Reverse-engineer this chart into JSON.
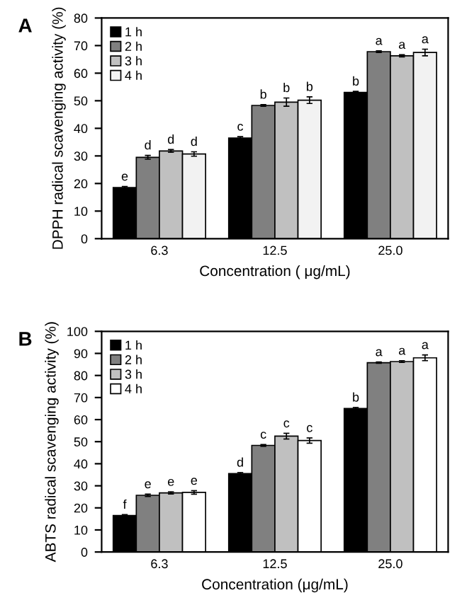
{
  "chart_data": [
    {
      "type": "bar",
      "title": "A",
      "xlabel": "Concentration ( μg/mL)",
      "ylabel": "DPPH radical scavenging activity (%)",
      "categories": [
        "6.3",
        "12.5",
        "25.0"
      ],
      "ylim": [
        0,
        80
      ],
      "yticks": [
        0,
        10,
        20,
        30,
        40,
        50,
        60,
        70,
        80
      ],
      "grid": false,
      "legend": "top left",
      "series": [
        {
          "name": "1 h",
          "color": "#000000",
          "values": [
            18.5,
            36.5,
            53
          ],
          "errors": [
            0.4,
            0.5,
            0.4
          ],
          "value_labels": [
            "e",
            "c",
            "b"
          ]
        },
        {
          "name": "2 h",
          "color": "#808080",
          "values": [
            29.5,
            48.3,
            67.8
          ],
          "errors": [
            0.7,
            0.3,
            0.3
          ],
          "value_labels": [
            "d",
            "b",
            "a"
          ]
        },
        {
          "name": "3 h",
          "color": "#c0c0c0",
          "values": [
            31.8,
            49.5,
            66.3
          ],
          "errors": [
            0.5,
            1.5,
            0.4
          ],
          "value_labels": [
            "d",
            "b",
            "a"
          ]
        },
        {
          "name": "4 h",
          "color": "#f2f2f2",
          "values": [
            30.7,
            50.2,
            67.5
          ],
          "errors": [
            0.8,
            1.2,
            1.2
          ],
          "value_labels": [
            "d",
            "b",
            "a"
          ]
        }
      ]
    },
    {
      "type": "bar",
      "title": "B",
      "xlabel": "Concentration (μg/mL)",
      "ylabel": "ABTS radical scavenging activity (%)",
      "categories": [
        "6.3",
        "12.5",
        "25.0"
      ],
      "ylim": [
        0,
        100
      ],
      "yticks": [
        0,
        10,
        20,
        30,
        40,
        50,
        60,
        70,
        80,
        90,
        100
      ],
      "grid": false,
      "legend": "top left",
      "series": [
        {
          "name": "1 h",
          "color": "#000000",
          "values": [
            16.5,
            35.5,
            65
          ],
          "errors": [
            0.4,
            0.5,
            0.5
          ],
          "value_labels": [
            "f",
            "d",
            "b"
          ]
        },
        {
          "name": "2 h",
          "color": "#808080",
          "values": [
            25.7,
            48.3,
            85.8
          ],
          "errors": [
            0.5,
            0.4,
            0.3
          ],
          "value_labels": [
            "e",
            "c",
            "a"
          ]
        },
        {
          "name": "3 h",
          "color": "#c0c0c0",
          "values": [
            26.8,
            52.5,
            86.3
          ],
          "errors": [
            0.5,
            1.3,
            0.4
          ],
          "value_labels": [
            "e",
            "c",
            "a"
          ]
        },
        {
          "name": "4 h",
          "color": "#ffffff",
          "values": [
            27,
            50.5,
            88
          ],
          "errors": [
            0.8,
            1.2,
            1.3
          ],
          "value_labels": [
            "e",
            "c",
            "a"
          ]
        }
      ]
    }
  ]
}
